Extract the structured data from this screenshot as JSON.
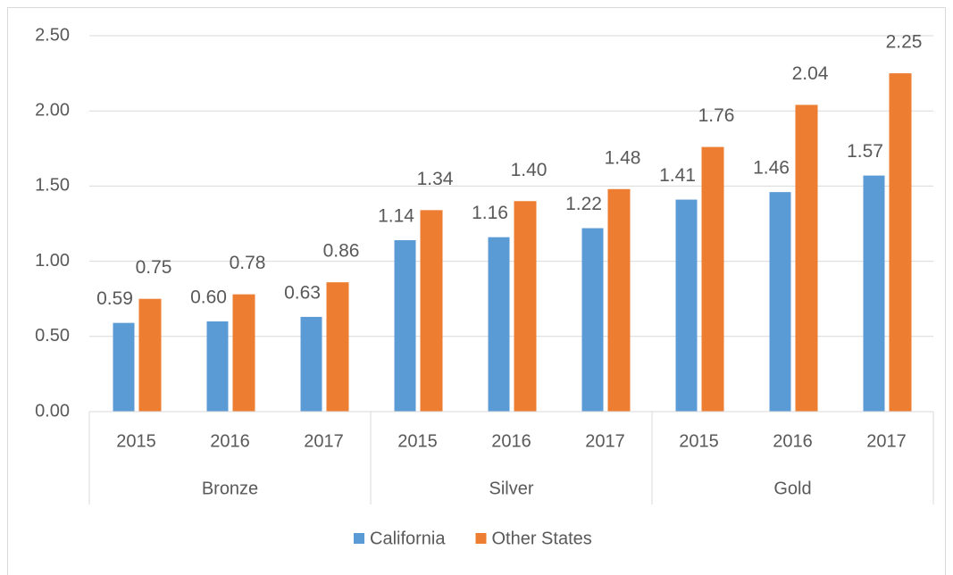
{
  "chart_data": {
    "type": "bar",
    "categories": [
      "2015",
      "2016",
      "2017",
      "2015",
      "2016",
      "2017",
      "2015",
      "2016",
      "2017"
    ],
    "groups": [
      "Bronze",
      "Silver",
      "Gold"
    ],
    "series": [
      {
        "name": "California",
        "color": "#5b9bd5",
        "values": [
          0.59,
          0.6,
          0.63,
          1.14,
          1.16,
          1.22,
          1.41,
          1.46,
          1.57
        ],
        "value_labels": [
          "0.59",
          "0.60",
          "0.63",
          "1.14",
          "1.16",
          "1.22",
          "1.41",
          "1.46",
          "1.57"
        ]
      },
      {
        "name": "Other States",
        "color": "#ed7d31",
        "values": [
          0.75,
          0.78,
          0.86,
          1.34,
          1.4,
          1.48,
          1.76,
          2.04,
          2.25
        ],
        "value_labels": [
          "0.75",
          "0.78",
          "0.86",
          "1.34",
          "1.40",
          "1.48",
          "1.76",
          "2.04",
          "2.25"
        ]
      }
    ],
    "ylim": [
      0,
      2.5
    ],
    "yticks": [
      {
        "value": 0,
        "label": "0.00"
      },
      {
        "value": 0.5,
        "label": "0.50"
      },
      {
        "value": 1,
        "label": "1.00"
      },
      {
        "value": 1.5,
        "label": "1.50"
      },
      {
        "value": 2,
        "label": "2.00"
      },
      {
        "value": 2.5,
        "label": "2.50"
      }
    ],
    "grid": true,
    "legend": "bottom"
  }
}
